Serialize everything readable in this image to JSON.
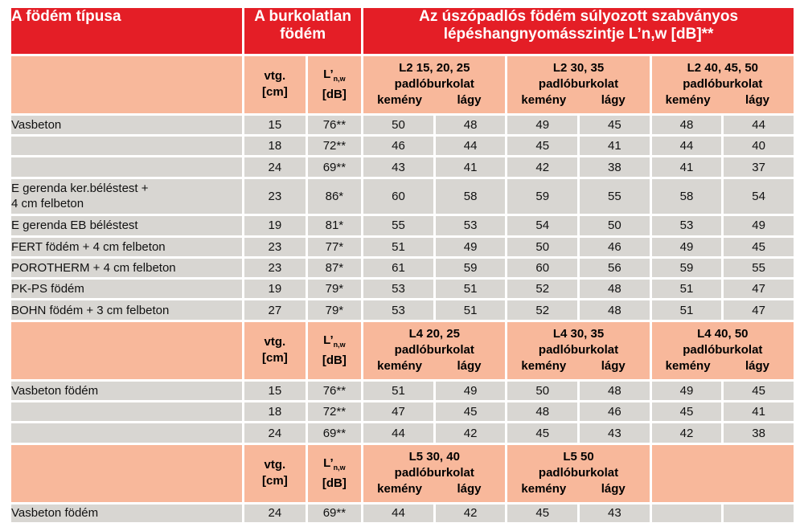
{
  "header": {
    "col1": "A födém típusa",
    "col2_line1": "A burkolatlan",
    "col2_line2": "födém",
    "col3_line1": "Az úszópadlós födém súlyozott szabványos",
    "col3_line2": "lépéshangnyomásszintje L’n,w [dB]**"
  },
  "units": {
    "vtg_line1": "vtg.",
    "vtg_line2": "[cm]",
    "lnw_main": "L’",
    "lnw_sub": "n,w",
    "lnw_unit": "[dB]",
    "padlo": "padlóburkolat",
    "hard": "kemény",
    "soft": "lágy"
  },
  "sections": [
    {
      "groups": [
        "L2  15, 20, 25",
        "L2  30, 35",
        "L2  40, 45, 50"
      ],
      "rows": [
        {
          "name": "Vasbeton",
          "vtg": "15",
          "lnw": "76**",
          "vals": [
            "50",
            "48",
            "49",
            "45",
            "48",
            "44"
          ]
        },
        {
          "name": "",
          "vtg": "18",
          "lnw": "72**",
          "vals": [
            "46",
            "44",
            "45",
            "41",
            "44",
            "40"
          ]
        },
        {
          "name": "",
          "vtg": "24",
          "lnw": "69**",
          "vals": [
            "43",
            "41",
            "42",
            "38",
            "41",
            "37"
          ]
        },
        {
          "name": "E gerenda ker.béléstest +",
          "name2": "4 cm felbeton",
          "vtg": "23",
          "lnw": "86*",
          "vals": [
            "60",
            "58",
            "59",
            "55",
            "58",
            "54"
          ]
        },
        {
          "name": "E gerenda EB béléstest",
          "vtg": "19",
          "lnw": "81*",
          "vals": [
            "55",
            "53",
            "54",
            "50",
            "53",
            "49"
          ]
        },
        {
          "name": "FERT födém + 4 cm felbeton",
          "vtg": "23",
          "lnw": "77*",
          "vals": [
            "51",
            "49",
            "50",
            "46",
            "49",
            "45"
          ]
        },
        {
          "name": "POROTHERM + 4 cm felbeton",
          "vtg": "23",
          "lnw": "87*",
          "vals": [
            "61",
            "59",
            "60",
            "56",
            "59",
            "55"
          ]
        },
        {
          "name": "PK-PS födém",
          "vtg": "19",
          "lnw": "79*",
          "vals": [
            "53",
            "51",
            "52",
            "48",
            "51",
            "47"
          ]
        },
        {
          "name": "BOHN födém + 3 cm felbeton",
          "vtg": "27",
          "lnw": "79*",
          "vals": [
            "53",
            "51",
            "52",
            "48",
            "51",
            "47"
          ]
        }
      ]
    },
    {
      "groups": [
        "L4  20, 25",
        "L4  30, 35",
        "L4  40, 50"
      ],
      "rows": [
        {
          "name": "Vasbeton födém",
          "vtg": "15",
          "lnw": "76**",
          "vals": [
            "51",
            "49",
            "50",
            "48",
            "49",
            "45"
          ]
        },
        {
          "name": "",
          "vtg": "18",
          "lnw": "72**",
          "vals": [
            "47",
            "45",
            "48",
            "46",
            "45",
            "41"
          ]
        },
        {
          "name": "",
          "vtg": "24",
          "lnw": "69**",
          "vals": [
            "44",
            "42",
            "45",
            "43",
            "42",
            "38"
          ]
        }
      ]
    },
    {
      "groups": [
        "L5  30, 40",
        "L5  50",
        ""
      ],
      "rows": [
        {
          "name": "Vasbeton födém",
          "vtg": "24",
          "lnw": "69**",
          "vals": [
            "44",
            "42",
            "45",
            "43",
            "",
            ""
          ]
        }
      ]
    }
  ]
}
